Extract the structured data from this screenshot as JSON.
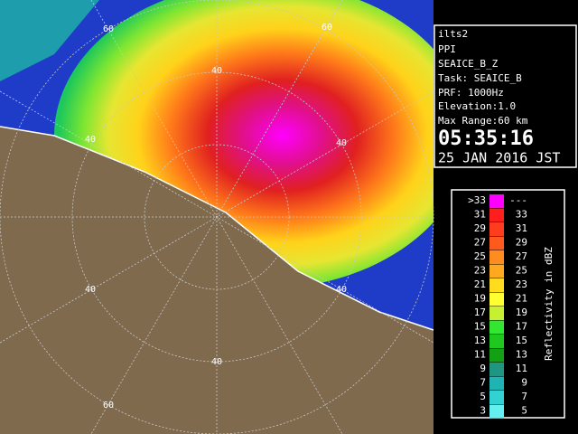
{
  "info": {
    "radar": "ilts2",
    "mode": "PPI",
    "product": "SEAICE_B_Z",
    "task": "Task: SEAICE_B",
    "prf": "PRF: 1000Hz",
    "elevation": "Elevation:1.0",
    "max_range": "Max Range:60 km",
    "time": "05:35:16",
    "date": "25 JAN 2016 JST"
  },
  "color_scale": {
    "title": "Reflectivity in dBZ",
    "rows": [
      {
        "low": ">33",
        "high": "---",
        "color": "#ff00ff"
      },
      {
        "low": "31",
        "high": "33",
        "color": "#ff1e1e"
      },
      {
        "low": "29",
        "high": "31",
        "color": "#ff3c1e"
      },
      {
        "low": "27",
        "high": "29",
        "color": "#ff5a1e"
      },
      {
        "low": "25",
        "high": "27",
        "color": "#ff8c1e"
      },
      {
        "low": "23",
        "high": "25",
        "color": "#ffaa1e"
      },
      {
        "low": "21",
        "high": "23",
        "color": "#ffdc1e"
      },
      {
        "low": "19",
        "high": "21",
        "color": "#ffff32"
      },
      {
        "low": "17",
        "high": "19",
        "color": "#c8f032"
      },
      {
        "low": "15",
        "high": "17",
        "color": "#32e632"
      },
      {
        "low": "13",
        "high": "15",
        "color": "#1ec81e"
      },
      {
        "low": "11",
        "high": "13",
        "color": "#14a014"
      },
      {
        "low": "9",
        "high": "11",
        "color": "#1e9682"
      },
      {
        "low": "7",
        "high": "9",
        "color": "#1eb4b4"
      },
      {
        "low": "5",
        "high": "7",
        "color": "#32d2d2"
      },
      {
        "low": "3",
        "high": "5",
        "color": "#64f0f0"
      }
    ]
  },
  "range_labels": [
    "60",
    "60",
    "40",
    "40",
    "40",
    "40",
    "40",
    "40",
    "60"
  ]
}
